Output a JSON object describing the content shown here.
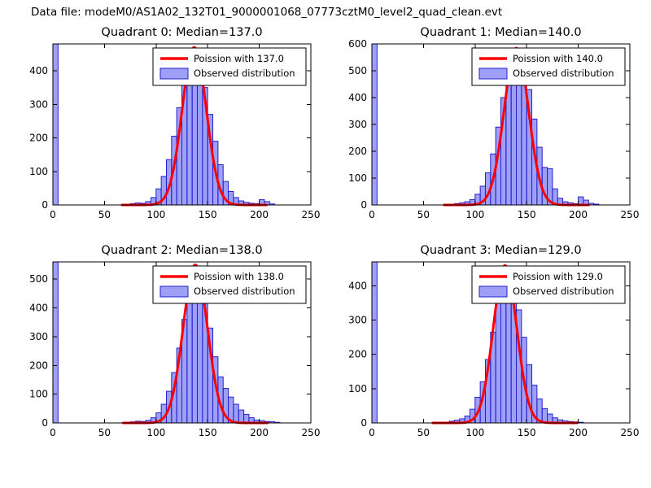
{
  "figure": {
    "title": "Data file: modeM0/AS1A02_132T01_9000001068_07773cztM0_level2_quad_clean.evt"
  },
  "colors": {
    "hist_fill": "rgba(80,80,240,0.55)",
    "hist_edge": "#2222cc",
    "fit_line": "#ff0000",
    "axis": "#000000",
    "background": "#ffffff"
  },
  "chart_data": [
    {
      "type": "bar",
      "subtype": "histogram-with-fit",
      "title": "Quadrant 0: Median=137.0",
      "median": 137.0,
      "legend": [
        "Poission with 137.0",
        "Observed distribution"
      ],
      "legend_position": "upper right",
      "xlim": [
        0,
        250
      ],
      "ylim": [
        0,
        480
      ],
      "xticks": [
        0,
        50,
        100,
        150,
        200,
        250
      ],
      "yticks": [
        0,
        100,
        200,
        300,
        400
      ],
      "bin_start": 0,
      "bin_width": 5,
      "counts": [
        480,
        0,
        0,
        0,
        0,
        0,
        0,
        0,
        0,
        0,
        0,
        0,
        0,
        0,
        0,
        4,
        6,
        5,
        10,
        22,
        48,
        85,
        135,
        205,
        290,
        360,
        415,
        430,
        400,
        350,
        270,
        190,
        120,
        70,
        40,
        22,
        12,
        8,
        5,
        4,
        16,
        10,
        3,
        0,
        0,
        0,
        0,
        0,
        0,
        0
      ],
      "fit": {
        "type": "poisson",
        "lambda": 137.0,
        "peak": 470
      }
    },
    {
      "type": "bar",
      "subtype": "histogram-with-fit",
      "title": "Quadrant 1: Median=140.0",
      "median": 140.0,
      "legend": [
        "Poission with 140.0",
        "Observed distribution"
      ],
      "legend_position": "upper right",
      "xlim": [
        0,
        250
      ],
      "ylim": [
        0,
        600
      ],
      "xticks": [
        0,
        50,
        100,
        150,
        200,
        250
      ],
      "yticks": [
        0,
        100,
        200,
        300,
        400,
        500,
        600
      ],
      "bin_start": 0,
      "bin_width": 5,
      "counts": [
        600,
        0,
        0,
        0,
        0,
        0,
        0,
        0,
        0,
        0,
        0,
        0,
        0,
        0,
        0,
        3,
        5,
        8,
        12,
        20,
        40,
        70,
        120,
        190,
        290,
        400,
        490,
        560,
        580,
        520,
        430,
        320,
        215,
        140,
        135,
        60,
        25,
        12,
        8,
        5,
        30,
        18,
        6,
        3,
        0,
        0,
        0,
        0,
        0,
        0
      ],
      "fit": {
        "type": "poisson",
        "lambda": 140.0,
        "peak": 585
      }
    },
    {
      "type": "bar",
      "subtype": "histogram-with-fit",
      "title": "Quadrant 2: Median=138.0",
      "median": 138.0,
      "legend": [
        "Poission with 138.0",
        "Observed distribution"
      ],
      "legend_position": "upper right",
      "xlim": [
        0,
        250
      ],
      "ylim": [
        0,
        560
      ],
      "xticks": [
        0,
        50,
        100,
        150,
        200,
        250
      ],
      "yticks": [
        0,
        100,
        200,
        300,
        400,
        500
      ],
      "bin_start": 0,
      "bin_width": 5,
      "counts": [
        560,
        0,
        0,
        0,
        0,
        0,
        0,
        0,
        0,
        0,
        0,
        0,
        0,
        0,
        2,
        4,
        6,
        5,
        9,
        18,
        35,
        65,
        110,
        175,
        260,
        360,
        460,
        545,
        520,
        440,
        330,
        230,
        160,
        120,
        90,
        65,
        45,
        30,
        18,
        10,
        8,
        5,
        4,
        2,
        0,
        0,
        0,
        0,
        0,
        0
      ],
      "fit": {
        "type": "poisson",
        "lambda": 138.0,
        "peak": 550
      }
    },
    {
      "type": "bar",
      "subtype": "histogram-with-fit",
      "title": "Quadrant 3: Median=129.0",
      "median": 129.0,
      "legend": [
        "Poission with 129.0",
        "Observed distribution"
      ],
      "legend_position": "upper right",
      "xlim": [
        0,
        250
      ],
      "ylim": [
        0,
        470
      ],
      "xticks": [
        0,
        50,
        100,
        150,
        200,
        250
      ],
      "yticks": [
        0,
        100,
        200,
        300,
        400
      ],
      "bin_start": 0,
      "bin_width": 5,
      "counts": [
        470,
        0,
        0,
        0,
        0,
        0,
        0,
        0,
        0,
        0,
        0,
        0,
        0,
        0,
        2,
        5,
        8,
        12,
        20,
        40,
        75,
        120,
        185,
        265,
        350,
        430,
        455,
        400,
        330,
        250,
        170,
        110,
        70,
        42,
        26,
        15,
        9,
        6,
        4,
        3,
        2,
        0,
        0,
        0,
        0,
        0,
        0,
        0,
        0,
        0
      ],
      "fit": {
        "type": "poisson",
        "lambda": 129.0,
        "peak": 460
      }
    }
  ]
}
